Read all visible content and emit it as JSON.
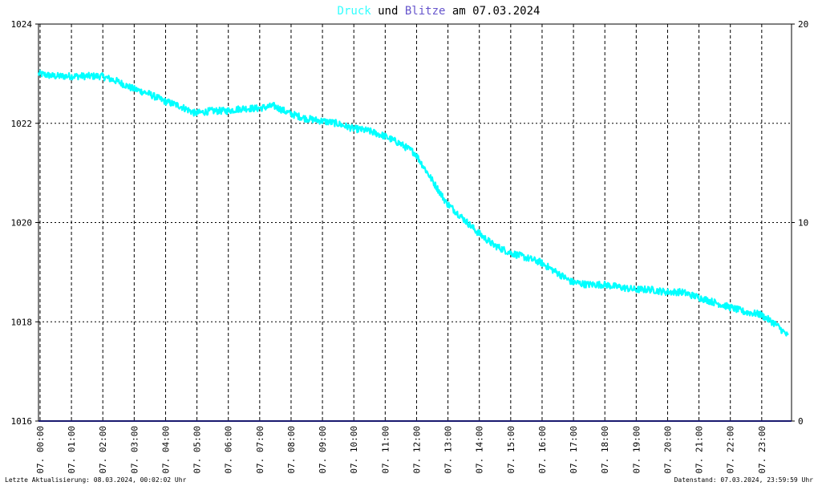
{
  "title": {
    "part1": "Druck",
    "part2": " und ",
    "part3": "Blitze",
    "part4": " am 07.03.2024",
    "color1": "#33ffff",
    "color3": "#6655cc",
    "color_text": "#000000"
  },
  "footer": {
    "left": "Letzte Aktualisierung: 08.03.2024, 00:02:02 Uhr",
    "right": "Datenstand: 07.03.2024, 23:59:59 Uhr"
  },
  "colors": {
    "pressure": "#00ffff",
    "lightning": "#1a1a70",
    "grid": "#000000",
    "background": "#ffffff"
  },
  "chart_data": {
    "type": "line",
    "title": "Druck und Blitze am 07.03.2024",
    "y_left_ticks": [
      "1024",
      "1022",
      "1020",
      "1018",
      "1016"
    ],
    "y_left_range": [
      1016,
      1024
    ],
    "y_right_ticks": [
      "20",
      "10",
      "0"
    ],
    "y_right_range": [
      0,
      20
    ],
    "x_range_hours": [
      0,
      24
    ],
    "x_ticks": [
      "07. 00:00",
      "07. 01:00",
      "07. 02:00",
      "07. 03:00",
      "07. 04:00",
      "07. 05:00",
      "07. 06:00",
      "07. 07:00",
      "07. 08:00",
      "07. 09:00",
      "07. 10:00",
      "07. 11:00",
      "07. 12:00",
      "07. 13:00",
      "07. 14:00",
      "07. 15:00",
      "07. 16:00",
      "07. 17:00",
      "07. 18:00",
      "07. 19:00",
      "07. 20:00",
      "07. 21:00",
      "07. 22:00",
      "07. 23:00"
    ],
    "grid": true,
    "series": [
      {
        "name": "Druck",
        "axis": "left",
        "x": [
          0,
          0.5,
          1,
          1.5,
          2,
          2.5,
          3,
          3.5,
          4,
          4.5,
          5,
          5.5,
          6,
          6.5,
          7,
          7.5,
          8,
          8.5,
          9,
          9.5,
          10,
          10.5,
          11,
          11.5,
          12,
          12.3,
          12.6,
          13,
          13.5,
          14,
          14.5,
          15,
          15.5,
          16,
          16.5,
          17,
          17.5,
          18,
          18.5,
          19,
          19.5,
          20,
          20.5,
          21,
          21.5,
          22,
          22.5,
          23,
          23.5,
          23.9
        ],
        "values": [
          1023.0,
          1022.95,
          1022.95,
          1022.95,
          1022.95,
          1022.85,
          1022.7,
          1022.6,
          1022.45,
          1022.35,
          1022.2,
          1022.25,
          1022.25,
          1022.3,
          1022.3,
          1022.35,
          1022.2,
          1022.1,
          1022.05,
          1022.0,
          1021.9,
          1021.85,
          1021.75,
          1021.6,
          1021.4,
          1021.1,
          1020.8,
          1020.4,
          1020.1,
          1019.8,
          1019.55,
          1019.4,
          1019.3,
          1019.2,
          1019.0,
          1018.8,
          1018.75,
          1018.75,
          1018.7,
          1018.65,
          1018.65,
          1018.6,
          1018.6,
          1018.5,
          1018.4,
          1018.3,
          1018.2,
          1018.15,
          1017.95,
          1017.7
        ]
      },
      {
        "name": "Blitze",
        "axis": "right",
        "x": [
          0,
          24
        ],
        "values": [
          0,
          0
        ]
      }
    ]
  }
}
